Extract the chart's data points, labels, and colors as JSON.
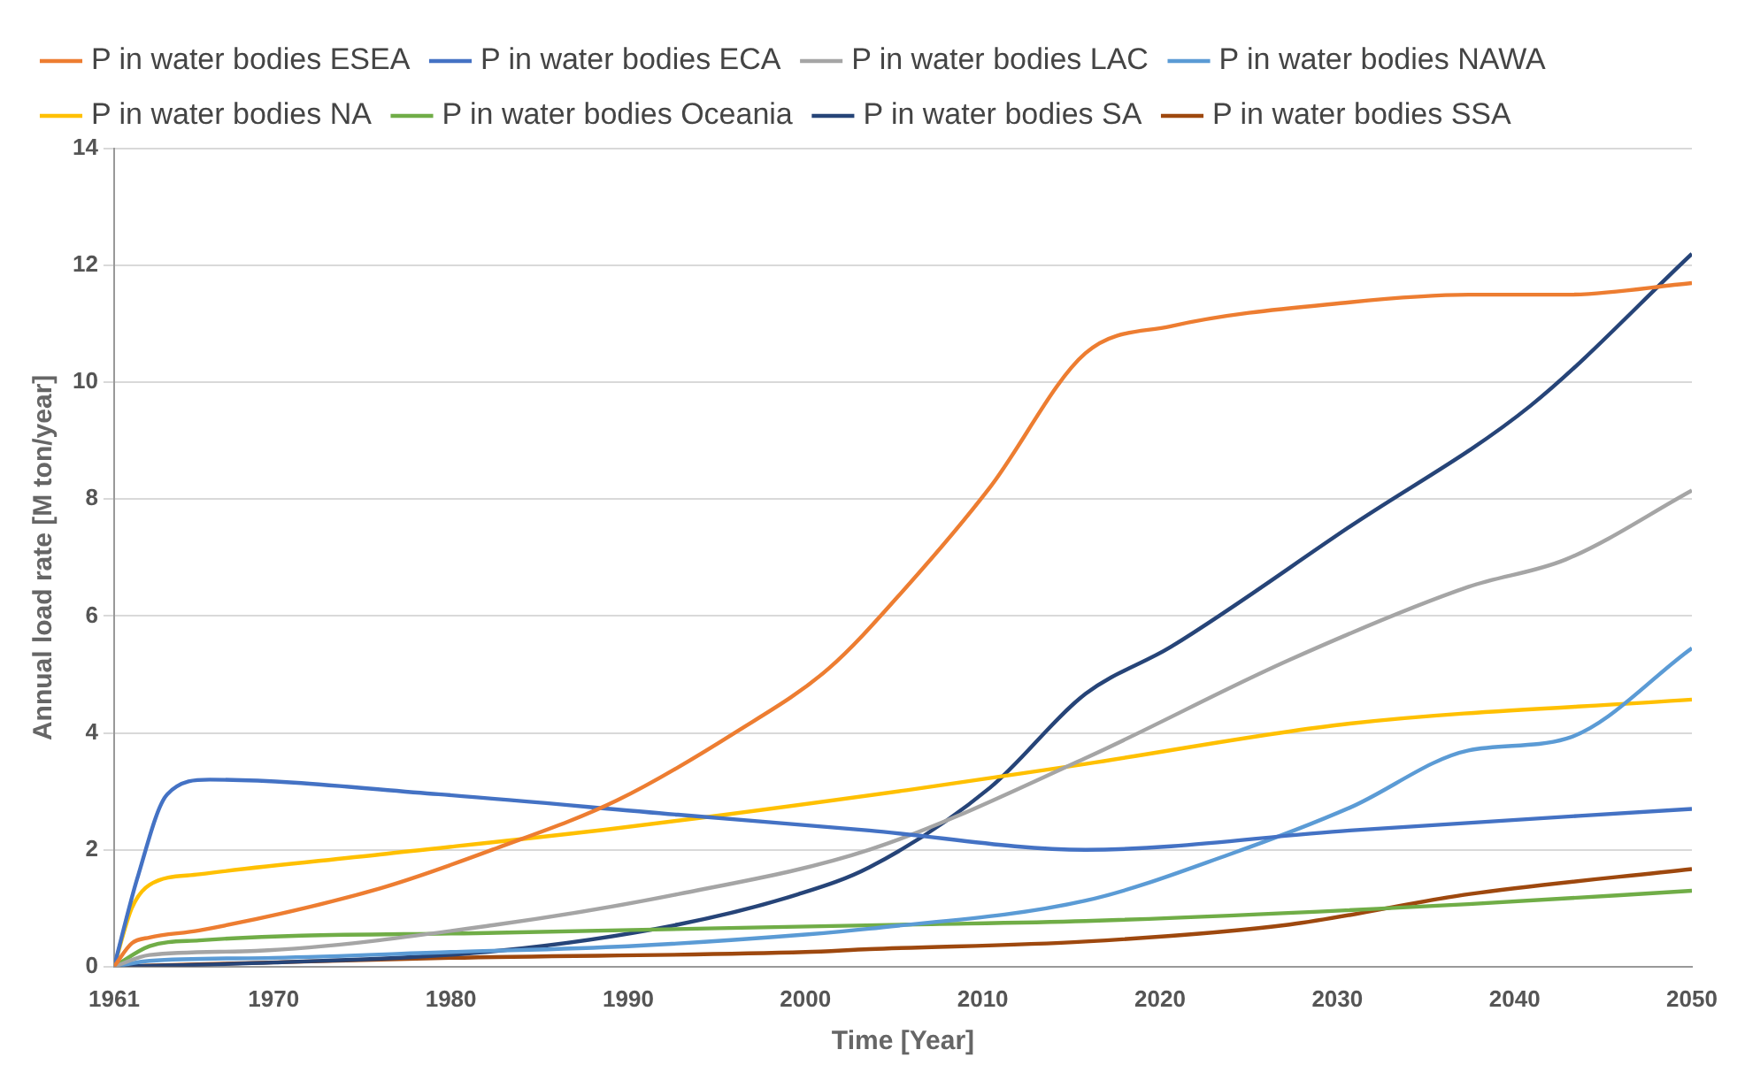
{
  "chart_data": {
    "type": "line",
    "xlabel": "Time [Year]",
    "ylabel": "Annual load rate [M ton/year]",
    "xlim": [
      1961,
      2050
    ],
    "xticks": [
      1961,
      1970,
      1980,
      1990,
      2000,
      2010,
      2020,
      2030,
      2040,
      2050
    ],
    "ylim": [
      0,
      14
    ],
    "yticks": [
      0,
      2,
      4,
      6,
      8,
      10,
      12,
      14
    ],
    "grid": "y",
    "legend": "top",
    "marker": "none",
    "line_style": "solid",
    "series": [
      {
        "name": "P in water bodies ESEA",
        "color": "#ed7d31",
        "x": [
          1961,
          1962,
          1963,
          1965.8,
          1976,
          1982.6,
          1989.4,
          1996,
          2001.3,
          2005.7,
          2010.4,
          2015.8,
          2020.6,
          2030.7,
          2037.4,
          2042.9,
          2050
        ],
        "values": [
          0,
          0.4,
          0.5,
          0.62,
          1.34,
          2.03,
          2.85,
          4.0,
          5.1,
          6.5,
          8.2,
          10.5,
          10.96,
          11.37,
          11.5,
          11.5,
          11.7
        ]
      },
      {
        "name": "P in water bodies ECA",
        "color": "#4472c4",
        "x": [
          1961,
          1962.3,
          1964,
          1966.4,
          1979.3,
          1992.8,
          2003.6,
          2015.8,
          2030.7,
          2050
        ],
        "values": [
          0,
          1.5,
          2.95,
          3.2,
          2.95,
          2.6,
          2.33,
          2.0,
          2.33,
          2.7
        ]
      },
      {
        "name": "P in water bodies LAC",
        "color": "#a5a5a5",
        "x": [
          1961,
          1963,
          1969,
          1982.6,
          1992.8,
          2003.6,
          2015.8,
          2027.3,
          2037.4,
          2042.9,
          2050
        ],
        "values": [
          0,
          0.2,
          0.27,
          0.72,
          1.24,
          2.0,
          3.57,
          5.25,
          6.5,
          6.97,
          8.15
        ]
      },
      {
        "name": "P in water bodies NAWA",
        "color": "#5b9bd5",
        "x": [
          1961,
          1963,
          1970,
          1980,
          1990,
          2000,
          2003.6,
          2015.8,
          2023.9,
          2030.7,
          2037.4,
          2042.9,
          2050
        ],
        "values": [
          0,
          0.1,
          0.15,
          0.25,
          0.35,
          0.55,
          0.65,
          1.13,
          1.92,
          2.72,
          3.7,
          3.9,
          5.45
        ]
      },
      {
        "name": "P in water bodies NA",
        "color": "#ffc000",
        "x": [
          1961,
          1962,
          1963,
          1965.8,
          1976,
          1989.4,
          2005.7,
          2015.8,
          2030.7,
          2050
        ],
        "values": [
          0,
          1.0,
          1.4,
          1.58,
          1.92,
          2.37,
          3.02,
          3.47,
          4.16,
          4.57
        ]
      },
      {
        "name": "P in water bodies Oceania",
        "color": "#70ad47",
        "x": [
          1961,
          1963,
          1965.8,
          1982.6,
          2005.7,
          2015.8,
          2037.4,
          2050
        ],
        "values": [
          0,
          0.35,
          0.45,
          0.58,
          0.72,
          0.78,
          1.07,
          1.3
        ]
      },
      {
        "name": "P in water bodies SA",
        "color": "#264478",
        "x": [
          1961,
          1970,
          1982.6,
          1992.8,
          1999.6,
          2003.6,
          2010.4,
          2015.8,
          2020.6,
          2030.7,
          2040.9,
          2050
        ],
        "values": [
          0,
          0.07,
          0.27,
          0.72,
          1.24,
          1.7,
          3.06,
          4.67,
          5.47,
          7.53,
          9.6,
          12.2
        ]
      },
      {
        "name": "P in water bodies SSA",
        "color": "#9e480e",
        "x": [
          1961,
          1980,
          2000,
          2003.6,
          2015.8,
          2027.3,
          2037.4,
          2050
        ],
        "values": [
          0,
          0.15,
          0.25,
          0.3,
          0.43,
          0.72,
          1.24,
          1.67
        ]
      }
    ]
  }
}
